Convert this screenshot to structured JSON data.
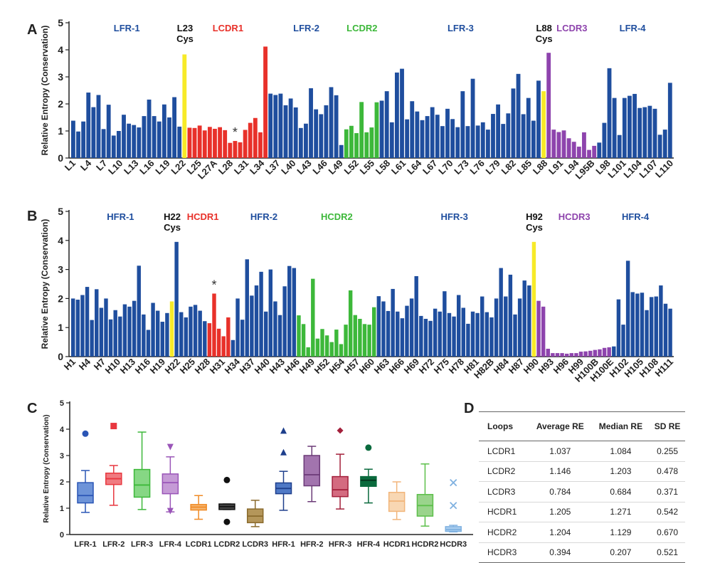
{
  "chart_data": [
    {
      "panel": "A",
      "type": "bar",
      "ylabel": "Relative Entropy (Conservation)",
      "ylim": [
        0,
        5
      ],
      "yticks": [
        0,
        1,
        2,
        3,
        4,
        5
      ],
      "colors": {
        "fr": "#1f4e9e",
        "cdr": "#e8312a",
        "cys": "#f7ea28"
      },
      "tick_labels": [
        "L1",
        "L4",
        "L7",
        "L10",
        "L13",
        "L16",
        "L19",
        "L22",
        "L25",
        "L27A",
        "L28",
        "L31",
        "L34",
        "L37",
        "L40",
        "L43",
        "L46",
        "L49",
        "L52",
        "L55",
        "L58",
        "L61",
        "L64",
        "L67",
        "L70",
        "L73",
        "L76",
        "L79",
        "L82",
        "L85",
        "L88",
        "L91",
        "L94",
        "L95B",
        "L98",
        "L101",
        "L104",
        "L107",
        "L110"
      ],
      "regions": [
        {
          "label": "LFR-1",
          "n": 22,
          "role": "fr"
        },
        {
          "label": "L23\nCys",
          "n": 1,
          "role": "cys"
        },
        {
          "label": "LCDR1",
          "n": 16,
          "role": "cdr",
          "color": "#e8312a"
        },
        {
          "label": "LFR-2",
          "n": 15,
          "role": "fr"
        },
        {
          "label": "LCDR2",
          "n": 7,
          "role": "cdr",
          "color": "#3db83a"
        },
        {
          "label": "LFR-3",
          "n": 32,
          "role": "fr"
        },
        {
          "label": "L88\nCys",
          "n": 1,
          "role": "cys"
        },
        {
          "label": "LCDR3",
          "n": 10,
          "role": "cdr",
          "color": "#8e44ad"
        },
        {
          "label": "LFR-4",
          "n": 14,
          "role": "fr"
        }
      ],
      "values": [
        1.38,
        0.98,
        1.35,
        2.42,
        1.88,
        2.33,
        1.07,
        1.97,
        0.83,
        1.0,
        1.6,
        1.27,
        1.22,
        1.13,
        1.55,
        2.16,
        1.55,
        1.35,
        1.98,
        1.5,
        2.25,
        1.16,
        3.83,
        1.12,
        1.11,
        1.2,
        1.02,
        1.15,
        1.08,
        1.14,
        1.03,
        0.56,
        0.63,
        0.58,
        1.04,
        1.3,
        1.48,
        0.95,
        4.12,
        2.38,
        2.33,
        2.38,
        1.95,
        2.2,
        1.87,
        1.11,
        1.27,
        2.58,
        1.8,
        1.62,
        1.95,
        2.62,
        2.32,
        0.48,
        1.06,
        1.19,
        0.92,
        2.07,
        0.95,
        1.13,
        2.06,
        2.12,
        2.47,
        1.32,
        3.16,
        3.3,
        1.43,
        2.1,
        1.72,
        1.4,
        1.55,
        1.88,
        1.6,
        1.18,
        1.82,
        1.44,
        1.14,
        2.47,
        1.18,
        2.93,
        1.2,
        1.32,
        1.05,
        1.63,
        1.98,
        1.26,
        1.65,
        2.57,
        3.11,
        1.62,
        2.22,
        1.38,
        2.86,
        2.47,
        3.89,
        1.05,
        0.96,
        1.02,
        0.73,
        0.6,
        0.42,
        0.95,
        0.3,
        0.45,
        0.57,
        1.3,
        3.32,
        2.22,
        0.85,
        2.22,
        2.3,
        2.37,
        1.85,
        1.88,
        1.93,
        1.82,
        0.86,
        1.05,
        2.78
      ],
      "annotation": "*",
      "annotation_index": 32
    },
    {
      "panel": "B",
      "type": "bar",
      "ylabel": "Relative Entropy (Conservation)",
      "ylim": [
        0,
        5
      ],
      "yticks": [
        0,
        1,
        2,
        3,
        4,
        5
      ],
      "colors": {
        "fr": "#1f4e9e",
        "cdr": "#e8312a",
        "cys": "#f7ea28"
      },
      "tick_labels": [
        "H1",
        "H4",
        "H7",
        "H10",
        "H13",
        "H16",
        "H19",
        "H22",
        "H25",
        "H28",
        "H31",
        "H34",
        "H37",
        "H40",
        "H43",
        "H46",
        "H49",
        "H52",
        "H54",
        "H57",
        "H60",
        "H63",
        "H66",
        "H69",
        "H72",
        "H75",
        "H78",
        "H81",
        "H82B",
        "H84",
        "H87",
        "H90",
        "H93",
        "H96",
        "H99",
        "H100B",
        "H100E",
        "H102",
        "H105",
        "H108",
        "H111"
      ],
      "regions": [
        {
          "label": "HFR-1",
          "n": 21,
          "role": "fr"
        },
        {
          "label": "H22\nCys",
          "n": 1,
          "role": "cys"
        },
        {
          "label": "HCDR1",
          "n": 12,
          "role": "fr_then_cdr",
          "cdr_start": 7,
          "color": "#e8312a"
        },
        {
          "label": "HFR-2",
          "n": 14,
          "role": "fr"
        },
        {
          "label": "HCDR2",
          "n": 17,
          "role": "cdr",
          "color": "#3db83a"
        },
        {
          "label": "HFR-3",
          "n": 33,
          "role": "fr"
        },
        {
          "label": "H92\nCys",
          "n": 1,
          "role": "cys"
        },
        {
          "label": "HCDR3",
          "n": 16,
          "role": "cdr",
          "color": "#8e44ad"
        },
        {
          "label": "HFR-4",
          "n": 10,
          "role": "fr"
        }
      ],
      "values": [
        2.0,
        1.96,
        2.12,
        2.4,
        1.26,
        2.32,
        1.68,
        2.0,
        1.28,
        1.6,
        1.38,
        1.8,
        1.72,
        1.92,
        3.13,
        1.45,
        0.92,
        1.85,
        1.58,
        1.2,
        1.5,
        1.9,
        3.95,
        1.53,
        1.35,
        1.72,
        1.78,
        1.58,
        1.22,
        1.15,
        2.17,
        0.96,
        0.7,
        1.35,
        0.57,
        2.0,
        1.27,
        3.35,
        2.1,
        2.45,
        2.92,
        1.55,
        3.0,
        1.9,
        1.43,
        2.42,
        3.12,
        3.05,
        1.42,
        1.12,
        0.32,
        2.68,
        0.62,
        0.95,
        0.73,
        0.5,
        0.93,
        0.43,
        1.1,
        2.28,
        1.43,
        1.3,
        1.12,
        1.1,
        1.7,
        2.08,
        1.9,
        1.57,
        2.33,
        1.55,
        1.32,
        1.75,
        2.0,
        2.77,
        1.4,
        1.3,
        1.23,
        1.65,
        1.55,
        2.25,
        1.5,
        1.38,
        2.12,
        1.68,
        1.13,
        1.55,
        1.5,
        2.07,
        1.53,
        1.35,
        2.0,
        3.05,
        2.07,
        2.82,
        1.45,
        2.0,
        2.62,
        2.45,
        3.95,
        1.92,
        1.72,
        0.27,
        0.12,
        0.12,
        0.12,
        0.1,
        0.12,
        0.12,
        0.17,
        0.18,
        0.2,
        0.23,
        0.25,
        0.3,
        0.32,
        0.35,
        1.97,
        1.1,
        3.3,
        2.22,
        2.17,
        2.2,
        1.6,
        2.05,
        2.07,
        2.45,
        1.82,
        1.65
      ],
      "annotation": "*",
      "annotation_index": 30
    },
    {
      "panel": "C",
      "type": "box",
      "ylabel": "Relative Entropy (Conservation)",
      "ylim": [
        0,
        5
      ],
      "yticks": [
        0,
        1,
        2,
        3,
        4,
        5
      ],
      "boxes": [
        {
          "name": "LFR-1",
          "color": "#2a55b5",
          "fill": "#6d93d8",
          "q1": 1.2,
          "median": 1.48,
          "q3": 1.97,
          "wlo": 0.84,
          "whi": 2.43,
          "outliers": [
            3.83
          ],
          "marker": "circle"
        },
        {
          "name": "LFR-2",
          "color": "#e8373f",
          "fill": "#f07a80",
          "q1": 1.9,
          "median": 2.12,
          "q3": 2.33,
          "wlo": 1.11,
          "whi": 2.62,
          "outliers": [
            4.12
          ],
          "marker": "square"
        },
        {
          "name": "LFR-3",
          "color": "#3db83a",
          "fill": "#86d784",
          "q1": 1.42,
          "median": 1.88,
          "q3": 2.47,
          "wlo": 0.95,
          "whi": 3.89,
          "outliers": [],
          "marker": "none"
        },
        {
          "name": "LFR-4",
          "color": "#9a55b8",
          "fill": "#c59ad6",
          "q1": 1.55,
          "median": 1.97,
          "q3": 2.3,
          "wlo": 0.86,
          "whi": 2.95,
          "outliers": [
            3.32,
            0.89
          ],
          "marker": "triangle-down"
        },
        {
          "name": "LCDR1",
          "color": "#f08a24",
          "fill": "#f5b56f",
          "q1": 0.93,
          "median": 1.04,
          "q3": 1.14,
          "wlo": 0.58,
          "whi": 1.48,
          "outliers": [],
          "marker": "none"
        },
        {
          "name": "LCDR2",
          "color": "#111111",
          "fill": "#444444",
          "q1": 0.95,
          "median": 1.06,
          "q3": 1.16,
          "wlo": 0.95,
          "whi": 1.16,
          "outliers": [
            2.07,
            0.48
          ],
          "marker": "circle"
        },
        {
          "name": "LCDR3",
          "color": "#8a6a2c",
          "fill": "#b4965a",
          "q1": 0.45,
          "median": 0.7,
          "q3": 0.97,
          "wlo": 0.3,
          "whi": 1.3,
          "outliers": [],
          "marker": "none"
        },
        {
          "name": "HFR-1",
          "color": "#1e3f8c",
          "fill": "#4f79c6",
          "q1": 1.55,
          "median": 1.75,
          "q3": 1.96,
          "wlo": 0.92,
          "whi": 2.4,
          "outliers": [
            3.95,
            3.13
          ],
          "marker": "triangle-up"
        },
        {
          "name": "HFR-2",
          "color": "#6b3a77",
          "fill": "#a274ae",
          "q1": 1.85,
          "median": 2.27,
          "q3": 3.0,
          "wlo": 1.25,
          "whi": 3.35,
          "outliers": [],
          "marker": "none"
        },
        {
          "name": "HFR-3",
          "color": "#a3203b",
          "fill": "#d46b80",
          "q1": 1.44,
          "median": 1.7,
          "q3": 2.2,
          "wlo": 0.97,
          "whi": 3.05,
          "outliers": [
            3.95
          ],
          "marker": "diamond"
        },
        {
          "name": "HFR-4",
          "color": "#0a6a3d",
          "fill": "#0a6a3d",
          "q1": 1.83,
          "median": 2.06,
          "q3": 2.2,
          "wlo": 1.2,
          "whi": 2.48,
          "outliers": [
            3.3
          ],
          "marker": "circle"
        },
        {
          "name": "HCDR1",
          "color": "#f2b57a",
          "fill": "#f8d7b3",
          "q1": 0.88,
          "median": 1.27,
          "q3": 1.6,
          "wlo": 0.57,
          "whi": 2.0,
          "outliers": [],
          "marker": "none"
        },
        {
          "name": "HCDR2",
          "color": "#5cbf4a",
          "fill": "#9ad48c",
          "q1": 0.7,
          "median": 1.1,
          "q3": 1.52,
          "wlo": 0.32,
          "whi": 2.68,
          "outliers": [],
          "marker": "none"
        },
        {
          "name": "HCDR3",
          "color": "#7fb1e0",
          "fill": "#a9cdef",
          "q1": 0.12,
          "median": 0.19,
          "q3": 0.3,
          "wlo": 0.1,
          "whi": 0.35,
          "outliers": [
            1.97,
            1.1
          ],
          "marker": "x"
        }
      ]
    }
  ],
  "panel_labels": {
    "a": "A",
    "b": "B",
    "c": "C",
    "d": "D"
  },
  "table": {
    "headers": [
      "Loops",
      "Average RE",
      "Median RE",
      "SD RE"
    ],
    "rows": [
      [
        "LCDR1",
        "1.037",
        "1.084",
        "0.255"
      ],
      [
        "LCDR2",
        "1.146",
        "1.203",
        "0.478"
      ],
      [
        "LCDR3",
        "0.784",
        "0.684",
        "0.371"
      ],
      [
        "HCDR1",
        "1.205",
        "1.271",
        "0.542"
      ],
      [
        "HCDR2",
        "1.204",
        "1.129",
        "0.670"
      ],
      [
        "HCDR3",
        "0.394",
        "0.207",
        "0.521"
      ]
    ]
  }
}
